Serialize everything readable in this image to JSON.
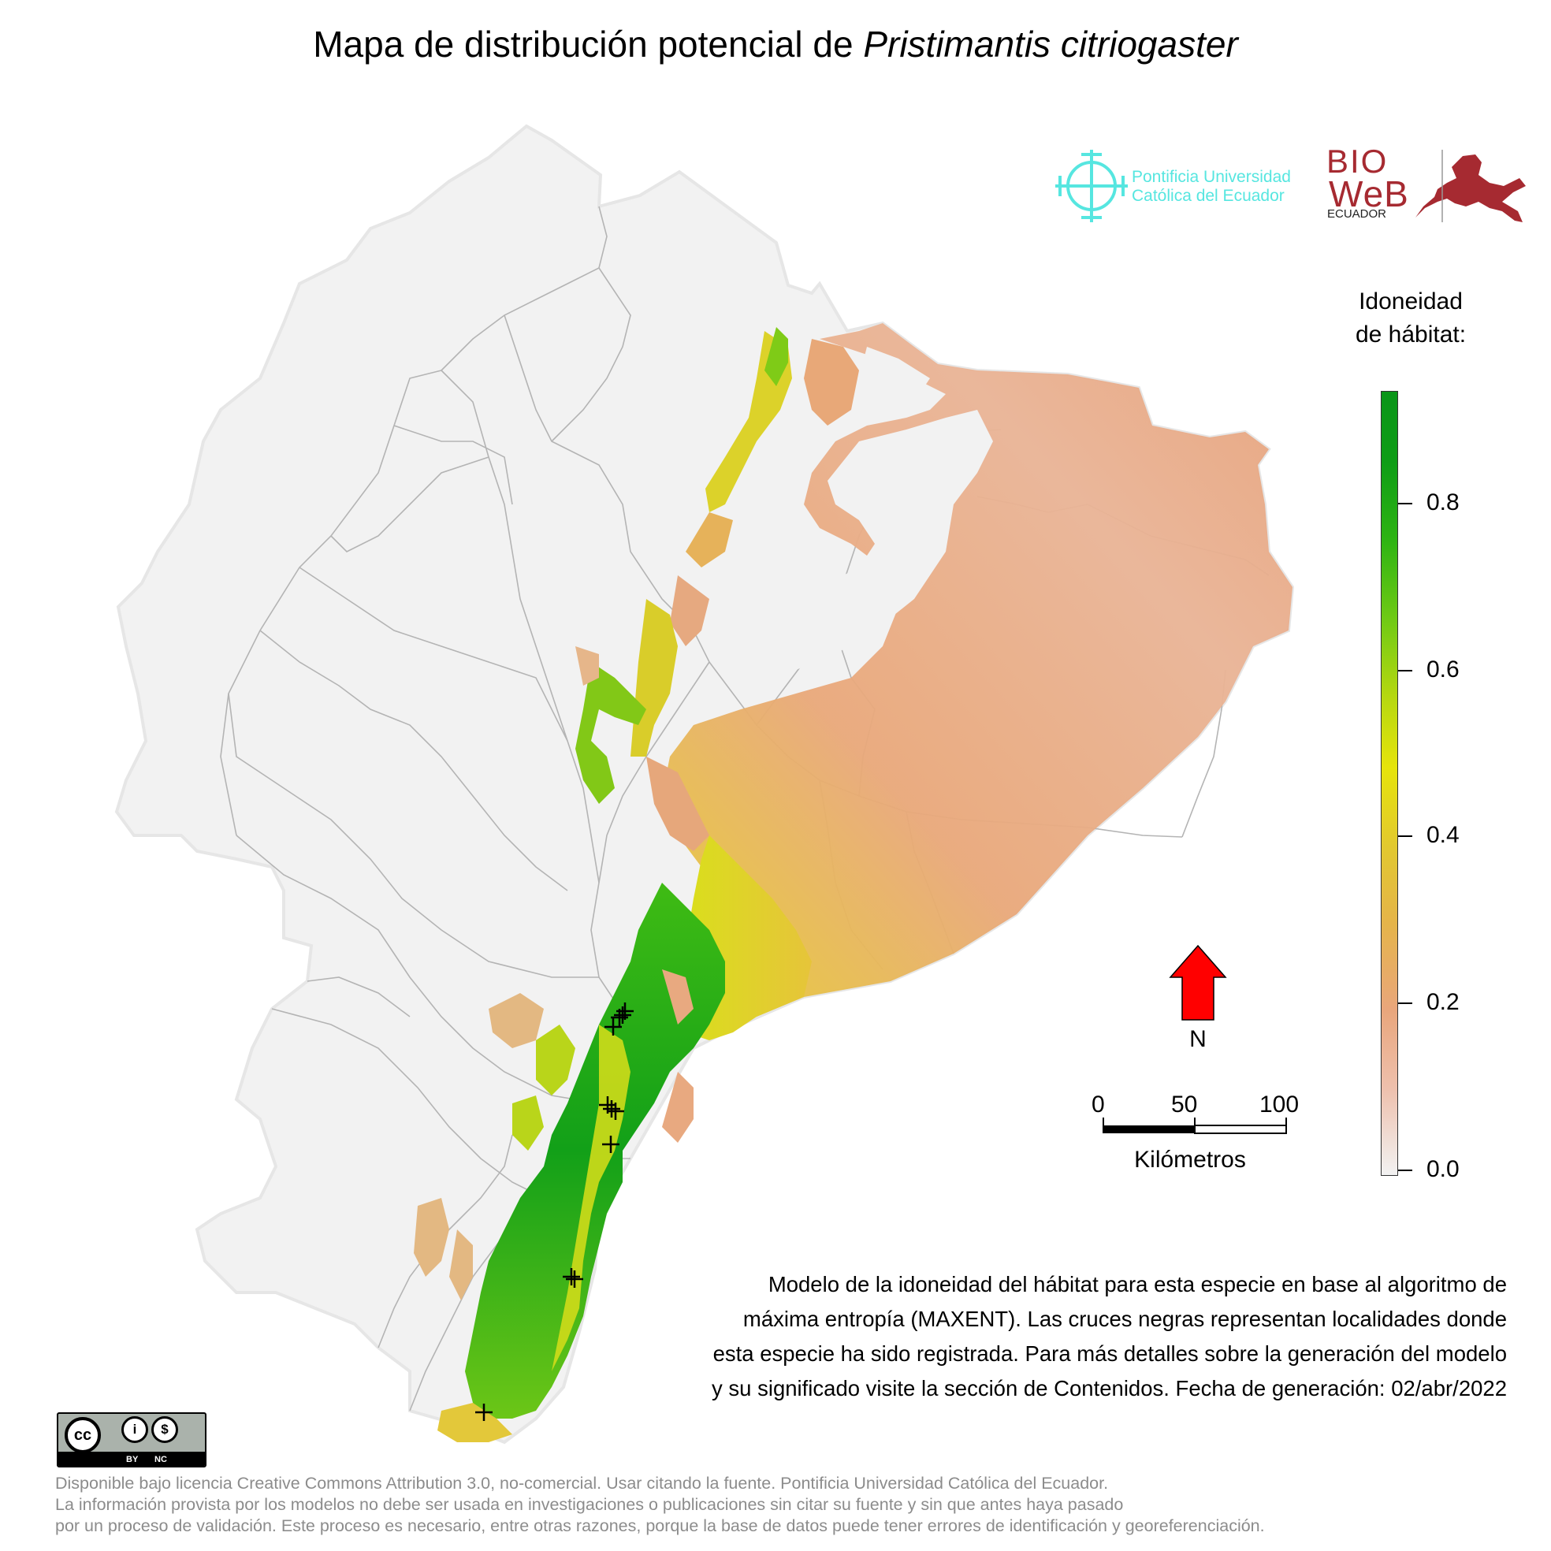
{
  "title": {
    "prefix": "Mapa de distribución potencial de",
    "species": "Pristimantis citriogaster"
  },
  "logos": {
    "puce_line1": "Pontificia Universidad",
    "puce_line2": "Católica del Ecuador",
    "bioweb_line1": "BIO",
    "bioweb_line2": "WeB",
    "bioweb_line3": "ECUADOR"
  },
  "legend": {
    "title_line1": "Idoneidad",
    "title_line2": "de hábitat:",
    "ticks": [
      "0.8",
      "0.6",
      "0.4",
      "0.2",
      "0.0"
    ]
  },
  "north": {
    "label": "N"
  },
  "scale_bar": {
    "labels": [
      "0",
      "50",
      "100"
    ],
    "unit": "Kilómetros"
  },
  "description": [
    "Modelo de la idoneidad del hábitat para esta especie en base al algoritmo de",
    "máxima entropía (MAXENT). Las cruces negras representan localidades donde",
    "esta especie ha sido registrada. Para más detalles sobre la generación del modelo",
    "y su significado visite la sección de Contenidos. Fecha de generación: 02/abr/2022"
  ],
  "license_badge": {
    "by": "BY",
    "nc": "NC",
    "cc": "cc"
  },
  "footer": [
    "Disponible bajo licencia Creative Commons Attribution 3.0, no-comercial. Usar citando la fuente. Pontificia Universidad Católica del Ecuador.",
    "La información provista por los modelos no debe ser usada en investigaciones o publicaciones sin citar su fuente y sin que antes haya pasado",
    "por un proceso de validación. Este proceso es necesario, entre otras razones, porque la base de datos puede tener errores de identificación y georeferenciación."
  ],
  "colors": {
    "land": "#f2f2f2",
    "high_suitability": "#0a9518",
    "mid_suitability": "#e6e40b",
    "low_suitability": "#e9a67c",
    "north_arrow": "#ff0000",
    "record_marker": "#000000"
  },
  "records_count": 11
}
